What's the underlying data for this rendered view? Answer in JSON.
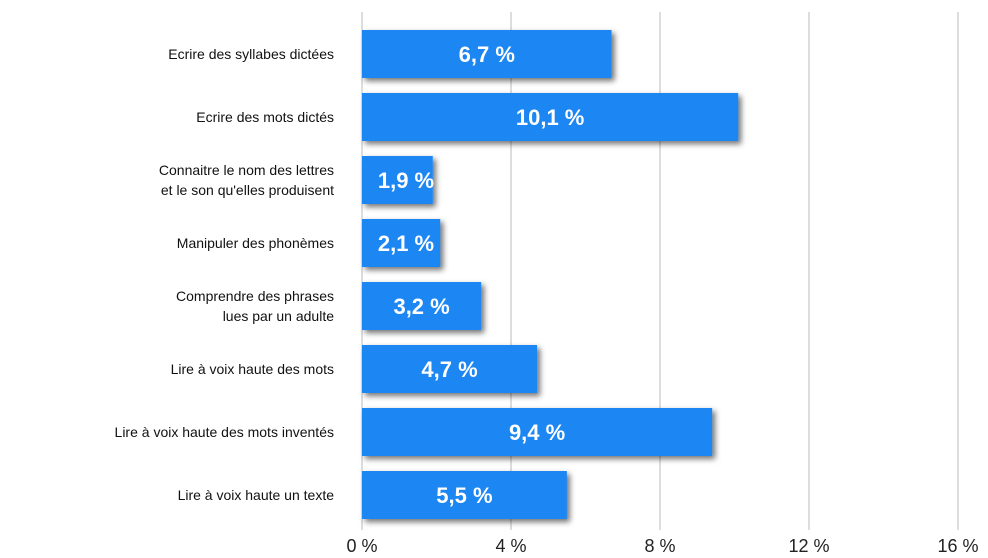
{
  "chart_data": {
    "type": "barh",
    "categories": [
      "Ecrire des syllabes dictées",
      "Ecrire des mots dictés",
      "Connaitre le nom des lettres\net le son qu'elles produisent",
      "Manipuler des phonèmes",
      "Comprendre des phrases\nlues par un adulte",
      "Lire à voix haute des mots",
      "Lire à voix haute des mots inventés",
      "Lire à voix haute un texte"
    ],
    "values": [
      6.7,
      10.1,
      1.9,
      2.1,
      3.2,
      4.7,
      9.4,
      5.5
    ],
    "value_labels": [
      "6,7 %",
      "10,1 %",
      "1,9 %",
      "2,1 %",
      "3,2 %",
      "4,7 %",
      "9,4 %",
      "5,5 %"
    ],
    "color": "#1c86f2",
    "xlim": [
      0,
      16
    ],
    "xticks": [
      {
        "value": 0,
        "label": "0 %"
      },
      {
        "value": 4,
        "label": "4 %"
      },
      {
        "value": 8,
        "label": "8 %"
      },
      {
        "value": 12,
        "label": "12 %"
      },
      {
        "value": 16,
        "label": "16 %"
      }
    ],
    "grid": true
  }
}
